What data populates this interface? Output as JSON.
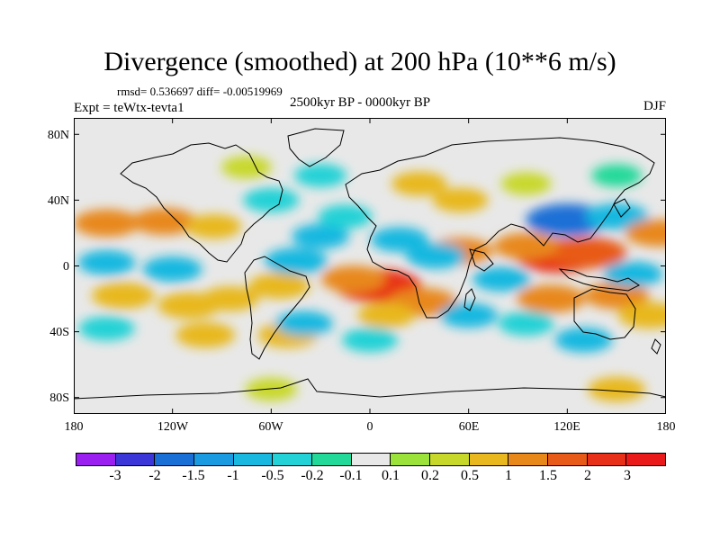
{
  "header": {
    "title": "Divergence (smoothed) at 200 hPa (10**6 m/s)",
    "stats": "rmsd= 0.536697 diff= -0.00519969",
    "experiment": "Expt = teWtx-tevta1",
    "period": "2500kyr BP - 0000kyr BP",
    "season": "DJF"
  },
  "chart_data": {
    "type": "heatmap",
    "title": "Divergence (smoothed) at 200 hPa (10**6 m/s)",
    "projection": "cylindrical-equidistant",
    "x_range": [
      -180,
      180
    ],
    "y_range": [
      -90,
      90
    ],
    "x_ticks": [
      "180",
      "120W",
      "60W",
      "0",
      "60E",
      "120E",
      "180"
    ],
    "y_ticks": [
      "80N",
      "40N",
      "0",
      "40S",
      "80S"
    ],
    "x_tick_values": [
      -180,
      -120,
      -60,
      0,
      60,
      120,
      180
    ],
    "y_tick_values": [
      80,
      40,
      0,
      -40,
      -80
    ],
    "colorbar": {
      "labels": [
        "-3",
        "-2",
        "-1.5",
        "-1",
        "-0.5",
        "-0.2",
        "-0.1",
        "0.1",
        "0.2",
        "0.5",
        "1",
        "1.5",
        "2",
        "3"
      ],
      "colors": [
        "#9a1ff0",
        "#3a36d8",
        "#1a6fd6",
        "#1a9ae0",
        "#18b8e0",
        "#22d2d6",
        "#22d99a",
        "#e8e8e8",
        "#9be23a",
        "#c8d82a",
        "#e8b81e",
        "#e8881a",
        "#e85a18",
        "#e83018",
        "#ea1a1a"
      ]
    },
    "features": [
      {
        "lon": -160,
        "lat": 26,
        "value": 1.1
      },
      {
        "lon": -125,
        "lat": 27,
        "value": 1.0
      },
      {
        "lon": -95,
        "lat": 24,
        "value": 0.5
      },
      {
        "lon": -150,
        "lat": -18,
        "value": 0.9
      },
      {
        "lon": -110,
        "lat": -24,
        "value": 0.9
      },
      {
        "lon": -85,
        "lat": -20,
        "value": 0.6
      },
      {
        "lon": -55,
        "lat": -12,
        "value": 0.8
      },
      {
        "lon": -45,
        "lat": 3,
        "value": -0.9
      },
      {
        "lon": -30,
        "lat": 18,
        "value": -0.6
      },
      {
        "lon": 5,
        "lat": -12,
        "value": 2.2
      },
      {
        "lon": -10,
        "lat": -8,
        "value": 1.0
      },
      {
        "lon": 32,
        "lat": -22,
        "value": 1.2
      },
      {
        "lon": 55,
        "lat": 9,
        "value": 1.0
      },
      {
        "lon": 18,
        "lat": 16,
        "value": -0.6
      },
      {
        "lon": 40,
        "lat": 6,
        "value": -0.7
      },
      {
        "lon": 115,
        "lat": 6,
        "value": 2.2
      },
      {
        "lon": 132,
        "lat": 8,
        "value": 1.8
      },
      {
        "lon": 95,
        "lat": 12,
        "value": 1.0
      },
      {
        "lon": 120,
        "lat": 28,
        "value": -2.0
      },
      {
        "lon": 150,
        "lat": 30,
        "value": -0.9
      },
      {
        "lon": 110,
        "lat": -20,
        "value": 1.2
      },
      {
        "lon": 150,
        "lat": -18,
        "value": 1.0
      },
      {
        "lon": 60,
        "lat": -30,
        "value": -0.6
      },
      {
        "lon": 95,
        "lat": -35,
        "value": -0.5
      },
      {
        "lon": 130,
        "lat": -45,
        "value": -0.6
      },
      {
        "lon": -160,
        "lat": 2,
        "value": -0.6
      },
      {
        "lon": -120,
        "lat": -2,
        "value": -0.7
      },
      {
        "lon": -100,
        "lat": -42,
        "value": 0.7
      },
      {
        "lon": -50,
        "lat": -42,
        "value": 0.7
      },
      {
        "lon": -160,
        "lat": -38,
        "value": -0.5
      },
      {
        "lon": -40,
        "lat": -35,
        "value": -0.6
      },
      {
        "lon": 0,
        "lat": -45,
        "value": -0.5
      },
      {
        "lon": 80,
        "lat": -8,
        "value": -0.6
      },
      {
        "lon": 95,
        "lat": 50,
        "value": 0.2
      },
      {
        "lon": 30,
        "lat": 50,
        "value": 0.5
      },
      {
        "lon": -60,
        "lat": 40,
        "value": -0.5
      },
      {
        "lon": -75,
        "lat": 60,
        "value": 0.2
      },
      {
        "lon": 150,
        "lat": 55,
        "value": -0.2
      },
      {
        "lon": 160,
        "lat": -5,
        "value": -0.7
      },
      {
        "lon": 175,
        "lat": 20,
        "value": 1.0
      },
      {
        "lon": -30,
        "lat": 55,
        "value": -0.3
      },
      {
        "lon": 150,
        "lat": -75,
        "value": 0.6
      },
      {
        "lon": -60,
        "lat": -75,
        "value": 0.3
      },
      {
        "lon": 170,
        "lat": -30,
        "value": 0.9
      },
      {
        "lon": -15,
        "lat": 30,
        "value": -0.4
      },
      {
        "lon": 55,
        "lat": 40,
        "value": 0.5
      },
      {
        "lon": 10,
        "lat": -30,
        "value": 0.6
      }
    ]
  }
}
